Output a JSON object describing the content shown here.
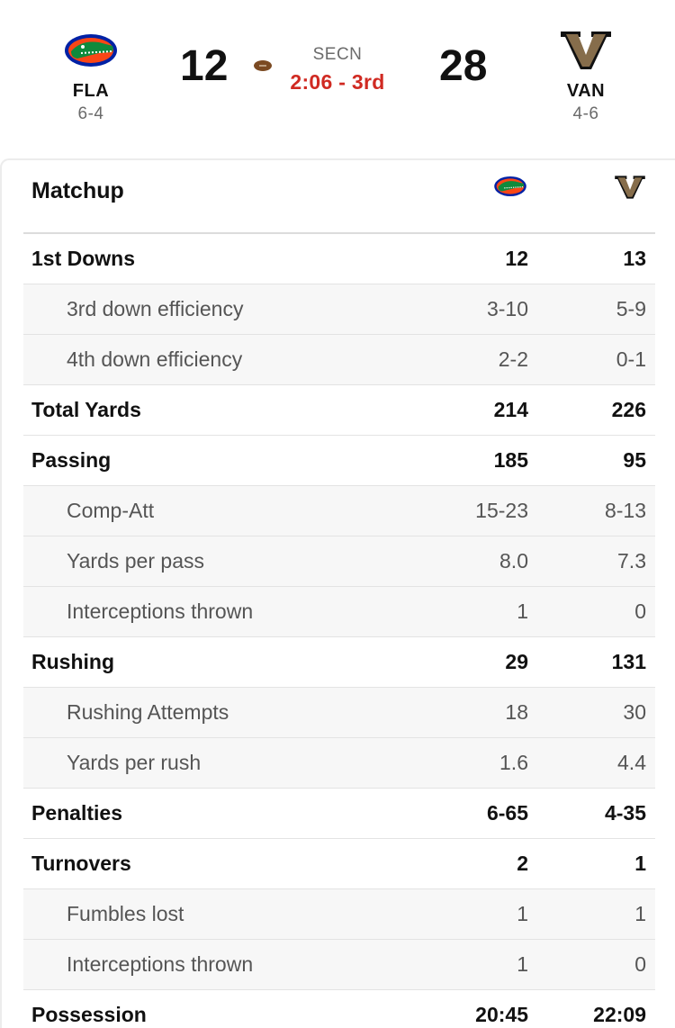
{
  "game": {
    "away": {
      "abbr": "FLA",
      "record": "6-4",
      "score": "12",
      "has_possession": true,
      "color": "#0021a5",
      "accent": "#fa4616"
    },
    "home": {
      "abbr": "VAN",
      "record": "4-6",
      "score": "28",
      "color": "#866d4b"
    },
    "network": "SECN",
    "clock": "2:06 - 3rd",
    "clock_color": "#d02a22"
  },
  "matchup": {
    "title": "Matchup",
    "rows": [
      {
        "label": "1st Downs",
        "away": "12",
        "home": "13",
        "sub": false
      },
      {
        "label": "3rd down efficiency",
        "away": "3-10",
        "home": "5-9",
        "sub": true
      },
      {
        "label": "4th down efficiency",
        "away": "2-2",
        "home": "0-1",
        "sub": true
      },
      {
        "label": "Total Yards",
        "away": "214",
        "home": "226",
        "sub": false
      },
      {
        "label": "Passing",
        "away": "185",
        "home": "95",
        "sub": false
      },
      {
        "label": "Comp-Att",
        "away": "15-23",
        "home": "8-13",
        "sub": true
      },
      {
        "label": "Yards per pass",
        "away": "8.0",
        "home": "7.3",
        "sub": true
      },
      {
        "label": "Interceptions thrown",
        "away": "1",
        "home": "0",
        "sub": true
      },
      {
        "label": "Rushing",
        "away": "29",
        "home": "131",
        "sub": false
      },
      {
        "label": "Rushing Attempts",
        "away": "18",
        "home": "30",
        "sub": true
      },
      {
        "label": "Yards per rush",
        "away": "1.6",
        "home": "4.4",
        "sub": true
      },
      {
        "label": "Penalties",
        "away": "6-65",
        "home": "4-35",
        "sub": false
      },
      {
        "label": "Turnovers",
        "away": "2",
        "home": "1",
        "sub": false
      },
      {
        "label": "Fumbles lost",
        "away": "1",
        "home": "1",
        "sub": true
      },
      {
        "label": "Interceptions thrown",
        "away": "1",
        "home": "0",
        "sub": true
      },
      {
        "label": "Possession",
        "away": "20:45",
        "home": "22:09",
        "sub": false
      }
    ]
  }
}
